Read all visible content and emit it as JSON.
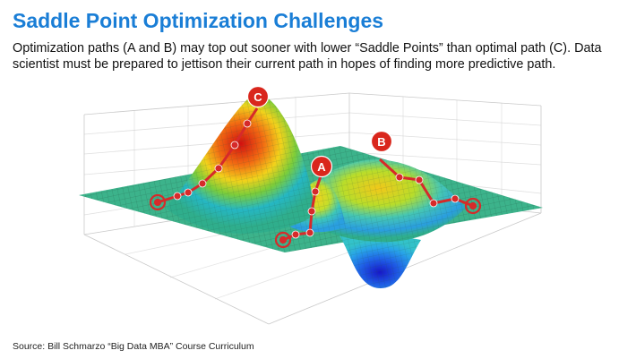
{
  "title": "Saddle Point Optimization Challenges",
  "subtitle": "Optimization paths (A and B) may top out sooner with lower “Saddle Points” than optimal path (C). Data scientist must be prepared to jettison their current path in hopes of finding more predictive path.",
  "markers": {
    "a": "A",
    "b": "B",
    "c": "C"
  },
  "source": "Source: Bill Schmarzo “Big Data MBA” Course Curriculum",
  "colors": {
    "title": "#1a7ed6",
    "plane": "#3cb38b",
    "path": "#d62a2a",
    "marker": "#d9261c"
  }
}
